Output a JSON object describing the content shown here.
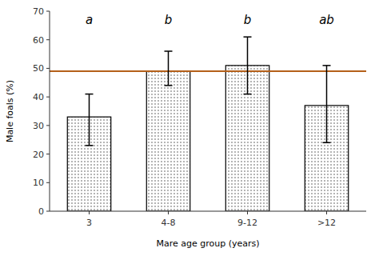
{
  "chart_data": {
    "type": "bar",
    "categories": [
      "3",
      "4-8",
      "9-12",
      ">12"
    ],
    "values": [
      33,
      49,
      51,
      37
    ],
    "error_upper": [
      8,
      7,
      10,
      14
    ],
    "error_lower": [
      10,
      5,
      10,
      13
    ],
    "color": "#ffffff",
    "reference_line": {
      "value": 49,
      "color": "#b5601a"
    },
    "significance_labels": [
      "a",
      "b",
      "b",
      "ab"
    ],
    "ylabel": "Male foals (%)",
    "xlabel": "Mare age group (years)",
    "ylim": [
      0,
      70
    ],
    "yticks": [
      0,
      10,
      20,
      30,
      40,
      50,
      60,
      70
    ],
    "grid": false
  }
}
